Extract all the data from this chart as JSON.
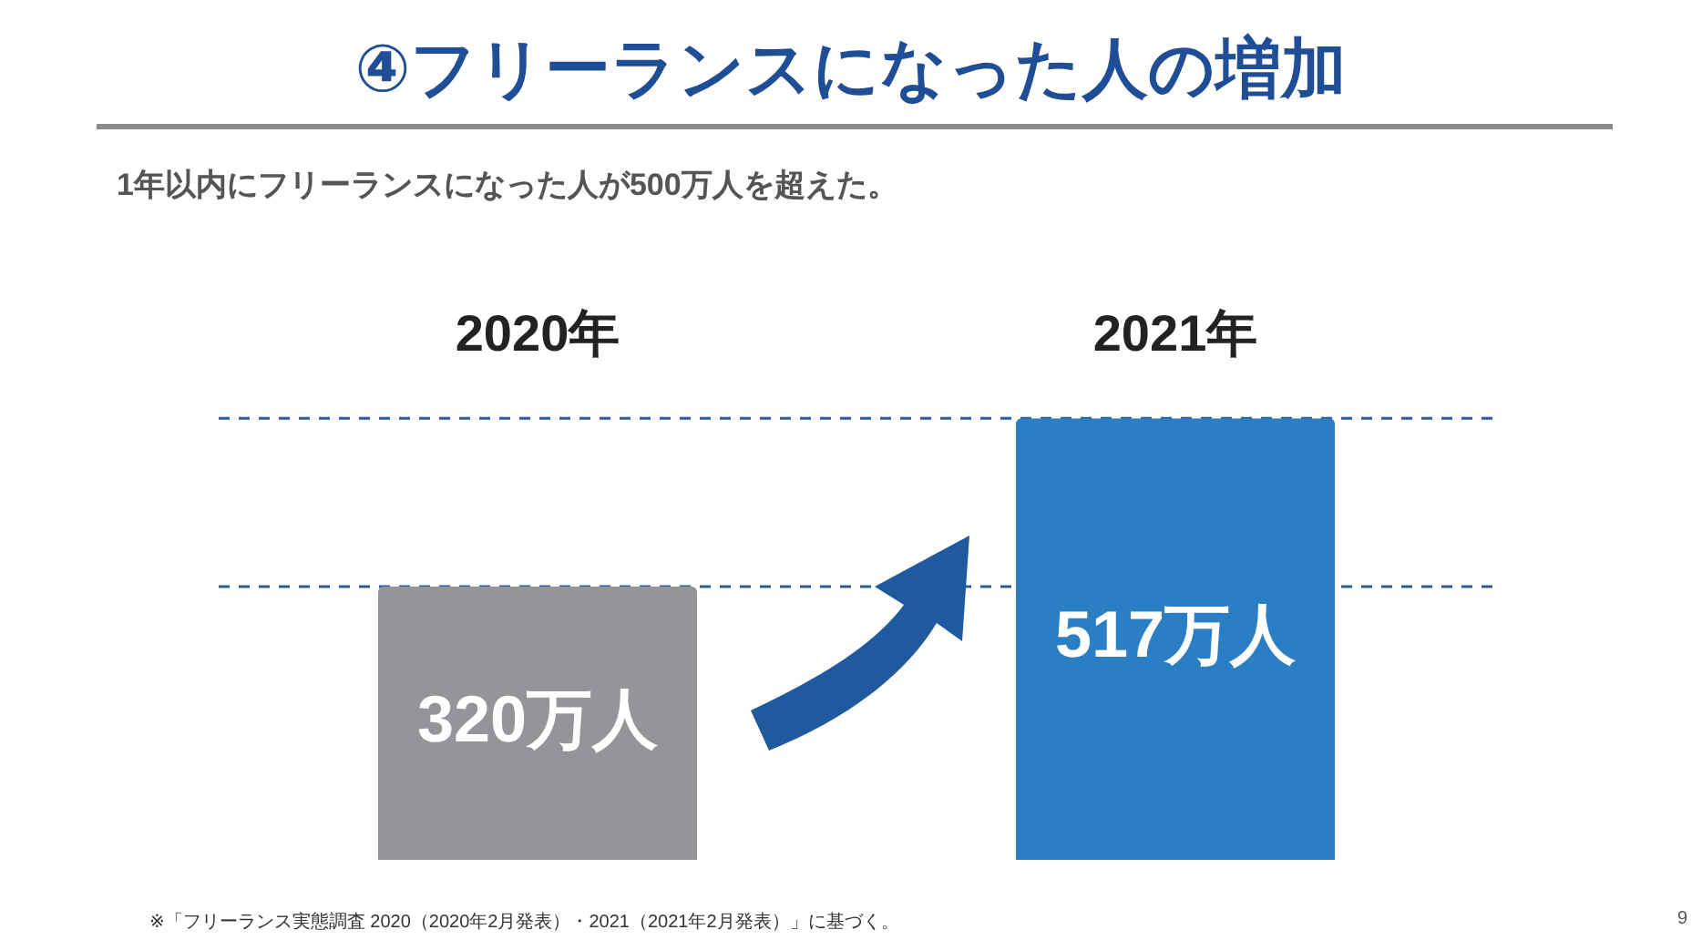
{
  "chart_data": {
    "type": "bar",
    "title": "④フリーランスになった人の増加",
    "subtitle": "1年以内にフリーランスになった人が500万人を超えた。",
    "categories": [
      "2020年",
      "2021年"
    ],
    "values": [
      320,
      517
    ],
    "colors": [
      "#939598",
      "#2a7fc4"
    ],
    "value_labels": [
      "320万人",
      "517万人"
    ],
    "ylim": [
      0,
      517
    ],
    "grid": false,
    "legend": false,
    "ref_lines": [
      {
        "axis": "y",
        "value": 320,
        "color": "#2f5d99",
        "line_style": "dashed"
      },
      {
        "axis": "y",
        "value": 517,
        "color": "#2f5d99",
        "line_style": "dashed"
      }
    ],
    "annotations": [
      "※「フリーランス実態調査 2020（2020年2月発表）・2021（2021年2月発表）」に基づく。",
      "9"
    ]
  }
}
